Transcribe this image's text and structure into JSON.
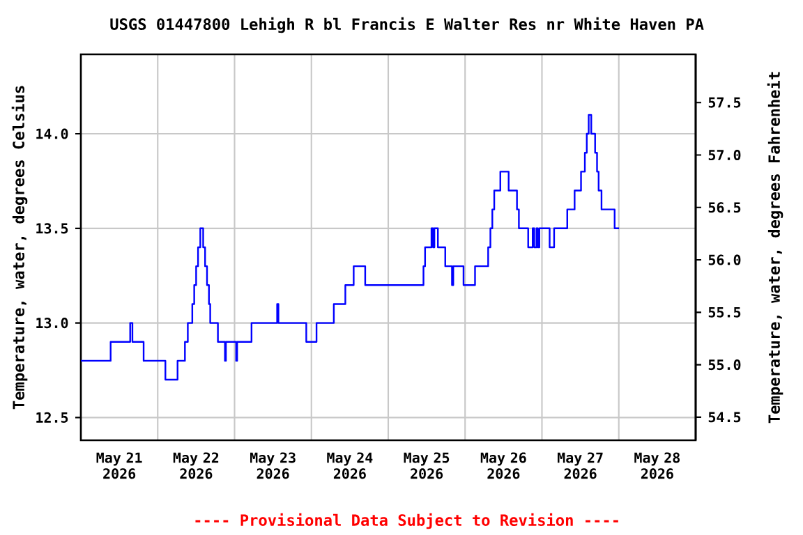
{
  "chart_data": {
    "type": "step",
    "title": "USGS 01447800 Lehigh R bl Francis E Walter Res nr White Haven PA",
    "ylabel": "Temperature, water, degrees Celsius",
    "y2label": "Temperature, water, degrees Fahrenheit",
    "annotations": [
      "---- Provisional Data Subject to Revision ----"
    ],
    "color": "#0000ff",
    "grid": true,
    "xlim": [
      "2026-05-21T00:00",
      "2026-05-29T00:00"
    ],
    "xticks": [
      {
        "value": "2026-05-21T12:00",
        "label": "May 21 2026"
      },
      {
        "value": "2026-05-22T12:00",
        "label": "May 22 2026"
      },
      {
        "value": "2026-05-23T12:00",
        "label": "May 23 2026"
      },
      {
        "value": "2026-05-24T12:00",
        "label": "May 24 2026"
      },
      {
        "value": "2026-05-25T12:00",
        "label": "May 25 2026"
      },
      {
        "value": "2026-05-26T12:00",
        "label": "May 26 2026"
      },
      {
        "value": "2026-05-27T12:00",
        "label": "May 27 2026"
      },
      {
        "value": "2026-05-28T12:00",
        "label": "May 28 2026"
      },
      {
        "value": "2026-05-22T00:00",
        "label": null
      },
      {
        "value": "2026-05-23T00:00",
        "label": null
      },
      {
        "value": "2026-05-24T00:00",
        "label": null
      },
      {
        "value": "2026-05-25T00:00",
        "label": null
      },
      {
        "value": "2026-05-26T00:00",
        "label": null
      },
      {
        "value": "2026-05-27T00:00",
        "label": null
      },
      {
        "value": "2026-05-28T00:00",
        "label": null
      }
    ],
    "ylim": [
      12.38,
      14.42
    ],
    "yticks": [
      12.5,
      {
        "value": 13,
        "label": "13.0"
      },
      13.5,
      {
        "value": 14,
        "label": "14.0"
      }
    ],
    "y2lim": [
      54.28,
      57.96
    ],
    "y2ticks": [
      54.5,
      {
        "value": 55,
        "label": "55.0"
      },
      55.5,
      {
        "value": 56,
        "label": "56.0"
      },
      56.5,
      {
        "value": 57,
        "label": "57.0"
      },
      57.5
    ],
    "x": [
      "2026-05-21T00:00",
      "2026-05-21T09:18",
      "2026-05-21T15:24",
      "2026-05-21T16:06",
      "2026-05-21T19:36",
      "2026-05-22T02:24",
      "2026-05-22T06:12",
      "2026-05-22T08:30",
      "2026-05-22T09:24",
      "2026-05-22T10:48",
      "2026-05-22T11:24",
      "2026-05-22T12:00",
      "2026-05-22T12:36",
      "2026-05-22T13:18",
      "2026-05-22T14:12",
      "2026-05-22T14:48",
      "2026-05-22T15:24",
      "2026-05-22T16:00",
      "2026-05-22T16:24",
      "2026-05-22T18:48",
      "2026-05-22T21:00",
      "2026-05-22T21:18",
      "2026-05-23T00:30",
      "2026-05-23T00:48",
      "2026-05-23T05:18",
      "2026-05-23T13:18",
      "2026-05-23T13:42",
      "2026-05-23T22:24",
      "2026-05-24T01:36",
      "2026-05-24T07:00",
      "2026-05-24T10:36",
      "2026-05-24T13:12",
      "2026-05-24T16:48",
      "2026-05-25T11:00",
      "2026-05-25T11:30",
      "2026-05-25T13:30",
      "2026-05-25T14:00",
      "2026-05-25T14:24",
      "2026-05-25T15:30",
      "2026-05-25T17:48",
      "2026-05-25T19:54",
      "2026-05-25T20:18",
      "2026-05-25T23:30",
      "2026-05-26T03:06",
      "2026-05-26T07:12",
      "2026-05-26T07:54",
      "2026-05-26T08:30",
      "2026-05-26T09:06",
      "2026-05-26T11:00",
      "2026-05-26T13:36",
      "2026-05-26T16:12",
      "2026-05-26T16:48",
      "2026-05-26T19:42",
      "2026-05-26T21:06",
      "2026-05-26T21:36",
      "2026-05-26T22:18",
      "2026-05-26T22:42",
      "2026-05-26T23:12",
      "2026-05-27T02:24",
      "2026-05-27T03:48",
      "2026-05-27T07:54",
      "2026-05-27T10:12",
      "2026-05-27T12:12",
      "2026-05-27T13:24",
      "2026-05-27T14:00",
      "2026-05-27T14:36",
      "2026-05-27T15:24",
      "2026-05-27T16:36",
      "2026-05-27T17:12",
      "2026-05-27T17:42",
      "2026-05-27T18:36",
      "2026-05-27T22:42",
      "2026-05-28T00:06"
    ],
    "values": [
      12.8,
      12.9,
      13.0,
      12.9,
      12.8,
      12.7,
      12.8,
      12.9,
      13.0,
      13.1,
      13.2,
      13.3,
      13.4,
      13.5,
      13.4,
      13.3,
      13.2,
      13.1,
      13.0,
      12.9,
      12.8,
      12.9,
      12.8,
      12.9,
      13.0,
      13.1,
      13.0,
      12.9,
      13.0,
      13.1,
      13.2,
      13.3,
      13.2,
      13.3,
      13.4,
      13.5,
      13.4,
      13.5,
      13.4,
      13.3,
      13.2,
      13.3,
      13.2,
      13.3,
      13.4,
      13.5,
      13.6,
      13.7,
      13.8,
      13.7,
      13.6,
      13.5,
      13.4,
      13.5,
      13.4,
      13.5,
      13.4,
      13.5,
      13.4,
      13.5,
      13.6,
      13.7,
      13.8,
      13.9,
      14.0,
      14.1,
      14.0,
      13.9,
      13.8,
      13.7,
      13.6,
      13.5,
      13.5
    ]
  }
}
